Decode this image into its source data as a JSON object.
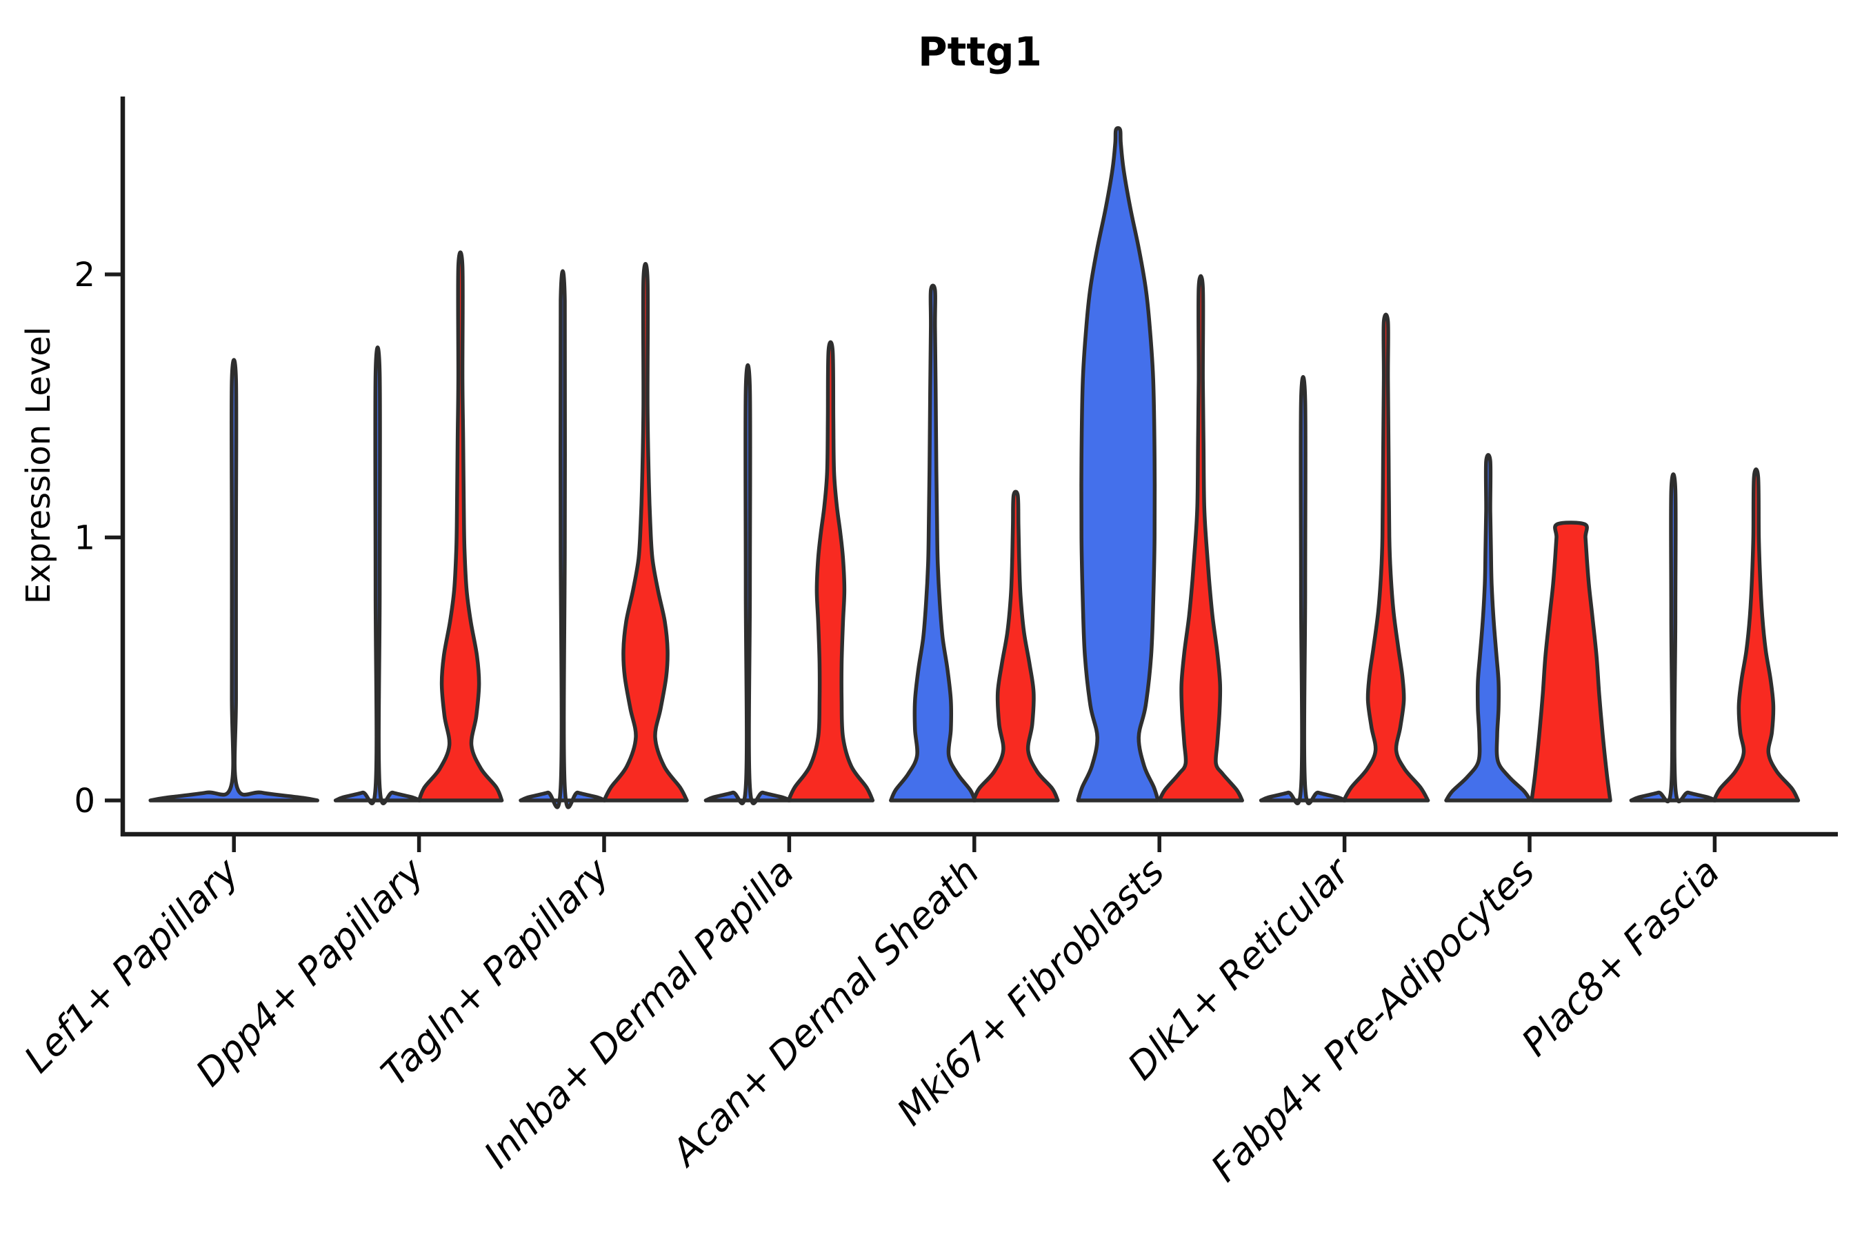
{
  "figure": {
    "title": "Pttg1"
  },
  "chart_data": {
    "type": "violin",
    "title": "Pttg1",
    "xlabel": "",
    "ylabel": "Expression Level",
    "yticks": [
      "0",
      "1",
      "2"
    ],
    "ylim": [
      -0.13,
      2.68
    ],
    "grid": false,
    "legend": "none",
    "categories": [
      "Lef1+ Papillary",
      "Dpp4+ Papillary",
      "Tagln+ Papillary",
      "Inhba+ Dermal Papilla",
      "Acan+ Dermal Sheath",
      "Mki67+ Fibroblasts",
      "Dlk1+ Reticular",
      "Fabp4+ Pre-Adipocytes",
      "Plac8+ Fascia"
    ],
    "groups": [
      {
        "id": "blue",
        "color": "#4470EB"
      },
      {
        "id": "red",
        "color": "#F82A21"
      }
    ],
    "outline_color": "#2E2E2E",
    "axis_color": "#1C1C1C",
    "violins": [
      {
        "category": "Lef1+ Papillary",
        "category_index": 0,
        "group": "blue",
        "side": "full",
        "max_expression": 1.6,
        "profile": [
          [
            0,
            121
          ],
          [
            0.01,
            100
          ],
          [
            0.03,
            40
          ],
          [
            0.055,
            4
          ],
          [
            0.4,
            3
          ],
          [
            1.0,
            3
          ],
          [
            1.6,
            3
          ]
        ]
      },
      {
        "category": "Dpp4+ Papillary",
        "category_index": 1,
        "group": "blue",
        "side": "left",
        "max_expression": 1.62,
        "profile": [
          [
            0,
            61
          ],
          [
            0.012,
            50
          ],
          [
            0.03,
            22
          ],
          [
            0.05,
            3
          ],
          [
            0.8,
            3
          ],
          [
            1.62,
            3
          ]
        ]
      },
      {
        "category": "Dpp4+ Papillary",
        "category_index": 1,
        "group": "red",
        "side": "right",
        "max_expression": 2.03,
        "profile": [
          [
            0,
            60
          ],
          [
            0.05,
            52
          ],
          [
            0.12,
            30
          ],
          [
            0.21,
            16
          ],
          [
            0.32,
            23
          ],
          [
            0.44,
            27
          ],
          [
            0.55,
            24
          ],
          [
            0.68,
            15
          ],
          [
            0.8,
            9
          ],
          [
            0.95,
            6
          ],
          [
            1.1,
            5
          ],
          [
            1.37,
            4
          ],
          [
            1.6,
            3
          ],
          [
            2.03,
            3
          ]
        ]
      },
      {
        "category": "Tagln+ Papillary",
        "category_index": 2,
        "group": "blue",
        "side": "left",
        "max_expression": 1.9,
        "profile": [
          [
            0,
            61
          ],
          [
            0.012,
            50
          ],
          [
            0.03,
            22
          ],
          [
            0.05,
            3
          ],
          [
            1.0,
            3
          ],
          [
            1.9,
            3
          ]
        ]
      },
      {
        "category": "Tagln+ Papillary",
        "category_index": 2,
        "group": "red",
        "side": "right",
        "max_expression": 1.98,
        "profile": [
          [
            0,
            60
          ],
          [
            0.05,
            50
          ],
          [
            0.13,
            27
          ],
          [
            0.24,
            14
          ],
          [
            0.35,
            22
          ],
          [
            0.47,
            30
          ],
          [
            0.57,
            32
          ],
          [
            0.68,
            28
          ],
          [
            0.8,
            18
          ],
          [
            0.92,
            10
          ],
          [
            1.05,
            7
          ],
          [
            1.2,
            5
          ],
          [
            1.5,
            3
          ],
          [
            1.98,
            3
          ]
        ]
      },
      {
        "category": "Inhba+ Dermal Papilla",
        "category_index": 3,
        "group": "blue",
        "side": "left",
        "max_expression": 1.56,
        "profile": [
          [
            0,
            61
          ],
          [
            0.012,
            50
          ],
          [
            0.03,
            22
          ],
          [
            0.05,
            3
          ],
          [
            0.8,
            3
          ],
          [
            1.56,
            3
          ]
        ]
      },
      {
        "category": "Inhba+ Dermal Papilla",
        "category_index": 3,
        "group": "red",
        "side": "right",
        "max_expression": 1.71,
        "profile": [
          [
            0,
            61
          ],
          [
            0.05,
            52
          ],
          [
            0.13,
            30
          ],
          [
            0.24,
            18
          ],
          [
            0.38,
            16
          ],
          [
            0.52,
            16
          ],
          [
            0.68,
            18
          ],
          [
            0.8,
            20
          ],
          [
            0.92,
            18
          ],
          [
            1.02,
            14
          ],
          [
            1.12,
            9
          ],
          [
            1.25,
            5
          ],
          [
            1.45,
            4
          ],
          [
            1.71,
            3
          ]
        ]
      },
      {
        "category": "Acan+ Dermal Sheath",
        "category_index": 4,
        "group": "blue",
        "side": "left",
        "max_expression": 1.94,
        "profile": [
          [
            0,
            61
          ],
          [
            0.04,
            54
          ],
          [
            0.1,
            36
          ],
          [
            0.17,
            23
          ],
          [
            0.27,
            26
          ],
          [
            0.38,
            26
          ],
          [
            0.5,
            21
          ],
          [
            0.62,
            14
          ],
          [
            0.75,
            10
          ],
          [
            0.9,
            7
          ],
          [
            1.05,
            6
          ],
          [
            1.25,
            5
          ],
          [
            1.55,
            4
          ],
          [
            1.8,
            3
          ],
          [
            1.94,
            3
          ]
        ]
      },
      {
        "category": "Acan+ Dermal Sheath",
        "category_index": 4,
        "group": "red",
        "side": "right",
        "max_expression": 1.16,
        "profile": [
          [
            0,
            61
          ],
          [
            0.045,
            53
          ],
          [
            0.11,
            31
          ],
          [
            0.19,
            18
          ],
          [
            0.29,
            24
          ],
          [
            0.41,
            26
          ],
          [
            0.52,
            20
          ],
          [
            0.64,
            12
          ],
          [
            0.78,
            7
          ],
          [
            0.92,
            5
          ],
          [
            1.05,
            4
          ],
          [
            1.16,
            3
          ]
        ]
      },
      {
        "category": "Mki67+ Fibroblasts",
        "category_index": 5,
        "group": "blue",
        "side": "left",
        "max_expression": 2.55,
        "profile": [
          [
            0,
            58
          ],
          [
            0.05,
            52
          ],
          [
            0.13,
            38
          ],
          [
            0.24,
            30
          ],
          [
            0.36,
            40
          ],
          [
            0.55,
            48
          ],
          [
            0.75,
            51
          ],
          [
            1.0,
            53
          ],
          [
            1.3,
            53
          ],
          [
            1.6,
            51
          ],
          [
            1.8,
            46
          ],
          [
            1.95,
            40
          ],
          [
            2.1,
            30
          ],
          [
            2.25,
            18
          ],
          [
            2.4,
            8
          ],
          [
            2.5,
            4
          ],
          [
            2.55,
            3
          ]
        ]
      },
      {
        "category": "Mki67+ Fibroblasts",
        "category_index": 5,
        "group": "red",
        "side": "right",
        "max_expression": 1.95,
        "profile": [
          [
            0,
            60
          ],
          [
            0.04,
            52
          ],
          [
            0.1,
            32
          ],
          [
            0.14,
            22
          ],
          [
            0.22,
            24
          ],
          [
            0.33,
            27
          ],
          [
            0.44,
            28
          ],
          [
            0.56,
            24
          ],
          [
            0.7,
            17
          ],
          [
            0.84,
            12
          ],
          [
            0.98,
            8
          ],
          [
            1.12,
            5
          ],
          [
            1.35,
            4
          ],
          [
            1.6,
            3
          ],
          [
            1.95,
            3
          ]
        ]
      },
      {
        "category": "Dlk1+ Reticular",
        "category_index": 6,
        "group": "blue",
        "side": "left",
        "max_expression": 1.52,
        "profile": [
          [
            0,
            61
          ],
          [
            0.012,
            50
          ],
          [
            0.03,
            22
          ],
          [
            0.05,
            3
          ],
          [
            0.8,
            3
          ],
          [
            1.52,
            3
          ]
        ]
      },
      {
        "category": "Dlk1+ Reticular",
        "category_index": 6,
        "group": "red",
        "side": "right",
        "max_expression": 1.82,
        "profile": [
          [
            0,
            61
          ],
          [
            0.05,
            50
          ],
          [
            0.12,
            27
          ],
          [
            0.19,
            15
          ],
          [
            0.28,
            21
          ],
          [
            0.38,
            26
          ],
          [
            0.47,
            24
          ],
          [
            0.58,
            18
          ],
          [
            0.72,
            11
          ],
          [
            0.86,
            7
          ],
          [
            1.0,
            5
          ],
          [
            1.3,
            4
          ],
          [
            1.6,
            3
          ],
          [
            1.82,
            3
          ]
        ]
      },
      {
        "category": "Fabp4+ Pre-Adipocytes",
        "category_index": 7,
        "group": "blue",
        "side": "left",
        "max_expression": 1.29,
        "profile": [
          [
            0,
            61
          ],
          [
            0.035,
            52
          ],
          [
            0.09,
            30
          ],
          [
            0.15,
            14
          ],
          [
            0.25,
            13
          ],
          [
            0.35,
            15
          ],
          [
            0.45,
            15
          ],
          [
            0.55,
            12
          ],
          [
            0.68,
            8
          ],
          [
            0.82,
            5
          ],
          [
            0.95,
            4
          ],
          [
            1.1,
            3
          ],
          [
            1.29,
            3
          ]
        ]
      },
      {
        "category": "Fabp4+ Pre-Adipocytes",
        "category_index": 7,
        "group": "red",
        "side": "right",
        "max_expression": 1.05,
        "flat_top": true,
        "profile": [
          [
            0,
            57
          ],
          [
            0.1,
            52
          ],
          [
            0.25,
            46
          ],
          [
            0.4,
            41
          ],
          [
            0.55,
            37
          ],
          [
            0.7,
            31
          ],
          [
            0.82,
            26
          ],
          [
            0.92,
            23
          ],
          [
            1.0,
            21
          ],
          [
            1.05,
            20
          ]
        ]
      },
      {
        "category": "Plac8+ Fascia",
        "category_index": 8,
        "group": "blue",
        "side": "left",
        "max_expression": 1.18,
        "profile": [
          [
            0,
            61
          ],
          [
            0.012,
            50
          ],
          [
            0.03,
            22
          ],
          [
            0.05,
            3
          ],
          [
            0.7,
            3
          ],
          [
            1.18,
            3
          ]
        ]
      },
      {
        "category": "Plac8+ Fascia",
        "category_index": 8,
        "group": "red",
        "side": "right",
        "max_expression": 1.23,
        "profile": [
          [
            0,
            61
          ],
          [
            0.045,
            52
          ],
          [
            0.11,
            30
          ],
          [
            0.18,
            18
          ],
          [
            0.26,
            23
          ],
          [
            0.36,
            25
          ],
          [
            0.46,
            21
          ],
          [
            0.57,
            14
          ],
          [
            0.7,
            9
          ],
          [
            0.84,
            6
          ],
          [
            1.0,
            4
          ],
          [
            1.23,
            3
          ]
        ]
      }
    ]
  }
}
